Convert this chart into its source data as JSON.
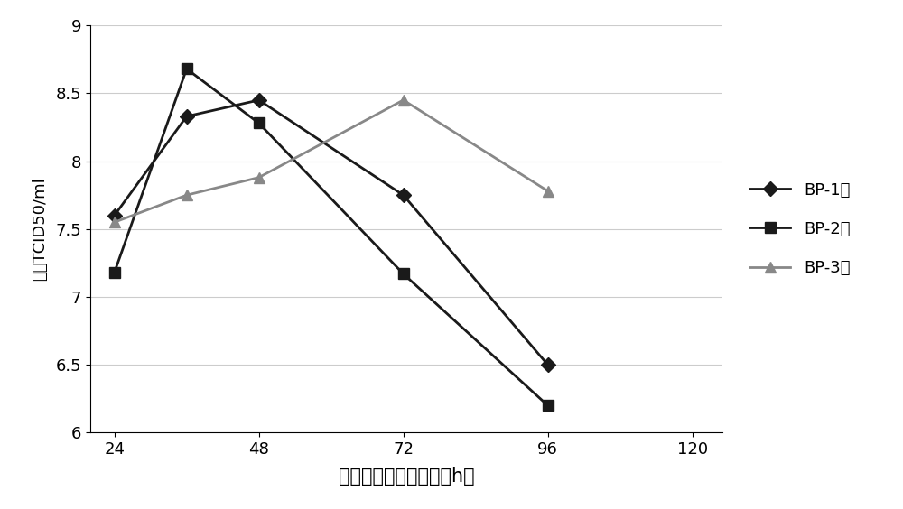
{
  "bp1": {
    "x": [
      24,
      36,
      48,
      72,
      96
    ],
    "y": [
      7.6,
      8.33,
      8.45,
      7.75,
      6.5
    ],
    "label": "BP-1株",
    "color": "#1a1a1a",
    "marker": "D",
    "markersize": 8,
    "linewidth": 2.0
  },
  "bp2": {
    "x": [
      24,
      36,
      48,
      72,
      96
    ],
    "y": [
      7.18,
      8.68,
      8.28,
      7.17,
      6.2
    ],
    "label": "BP-2株",
    "color": "#1a1a1a",
    "marker": "s",
    "markersize": 8,
    "linewidth": 2.0
  },
  "bp3": {
    "x": [
      24,
      36,
      48,
      72,
      96
    ],
    "y": [
      7.55,
      7.75,
      7.88,
      8.45,
      7.78
    ],
    "label": "BP-3株",
    "color": "#888888",
    "marker": "^",
    "markersize": 8,
    "linewidth": 2.0
  },
  "xlabel": "接毒后细胞培尻时间（h）",
  "ylabel": "毒价TCID50/ml",
  "xlim": [
    20,
    125
  ],
  "ylim": [
    6,
    9
  ],
  "xticks": [
    24,
    48,
    72,
    96,
    120
  ],
  "yticks": [
    6,
    6.5,
    7,
    7.5,
    8,
    8.5,
    9
  ],
  "background_color": "#ffffff",
  "grid_color": "#cccccc",
  "xlabel_fontsize": 15,
  "ylabel_fontsize": 13,
  "tick_fontsize": 13,
  "legend_fontsize": 13
}
